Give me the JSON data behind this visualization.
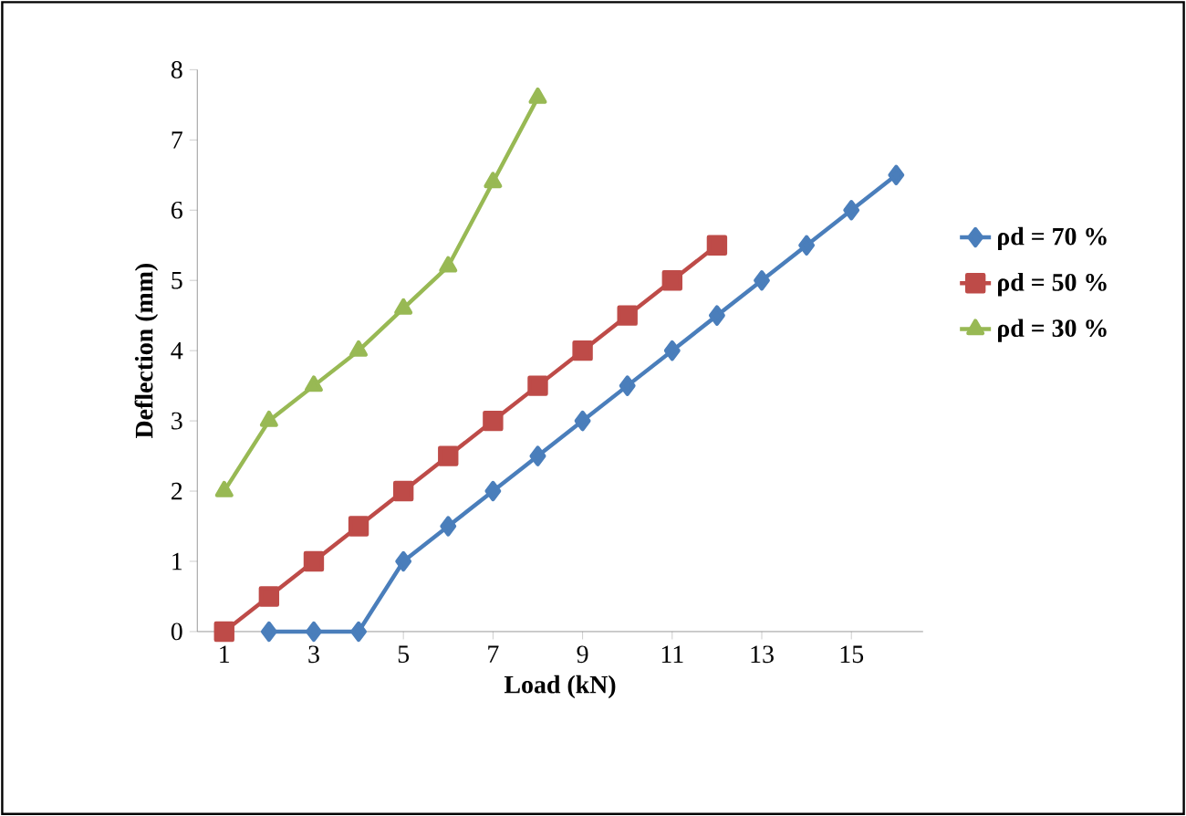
{
  "chart_data": {
    "type": "line",
    "xlabel": "Load (kN)",
    "ylabel": "Deflection (mm)",
    "xlim": [
      0.4,
      16.6
    ],
    "xticks": [
      1,
      3,
      5,
      7,
      9,
      11,
      13,
      15
    ],
    "ylim": [
      0,
      8
    ],
    "yticks": [
      0,
      1,
      2,
      3,
      4,
      5,
      6,
      7,
      8
    ],
    "grid": false,
    "legend": "right",
    "line_style": "solid",
    "series": [
      {
        "name": "ρd  = 70 %",
        "color": "#4a7ebb",
        "marker": "diamond",
        "x": [
          2,
          3,
          4,
          5,
          6,
          7,
          8,
          9,
          10,
          11,
          12,
          13,
          14,
          15,
          16
        ],
        "values": [
          0,
          0,
          0,
          1,
          1.5,
          2,
          2.5,
          3,
          3.5,
          4,
          4.5,
          5,
          5.5,
          6,
          6.5
        ]
      },
      {
        "name": "ρd  = 50 %",
        "color": "#be4b48",
        "marker": "square",
        "x": [
          1,
          2,
          3,
          4,
          5,
          6,
          7,
          8,
          9,
          10,
          11,
          12
        ],
        "values": [
          0,
          0.5,
          1,
          1.5,
          2,
          2.5,
          3,
          3.5,
          4,
          4.5,
          5,
          5.5
        ]
      },
      {
        "name": "ρd  = 30 %",
        "color": "#98b954",
        "marker": "triangle",
        "x": [
          1,
          2,
          3,
          4,
          5,
          6,
          7,
          8
        ],
        "values": [
          2,
          3,
          3.5,
          4,
          4.6,
          5.2,
          6.4,
          7.6
        ]
      }
    ]
  }
}
